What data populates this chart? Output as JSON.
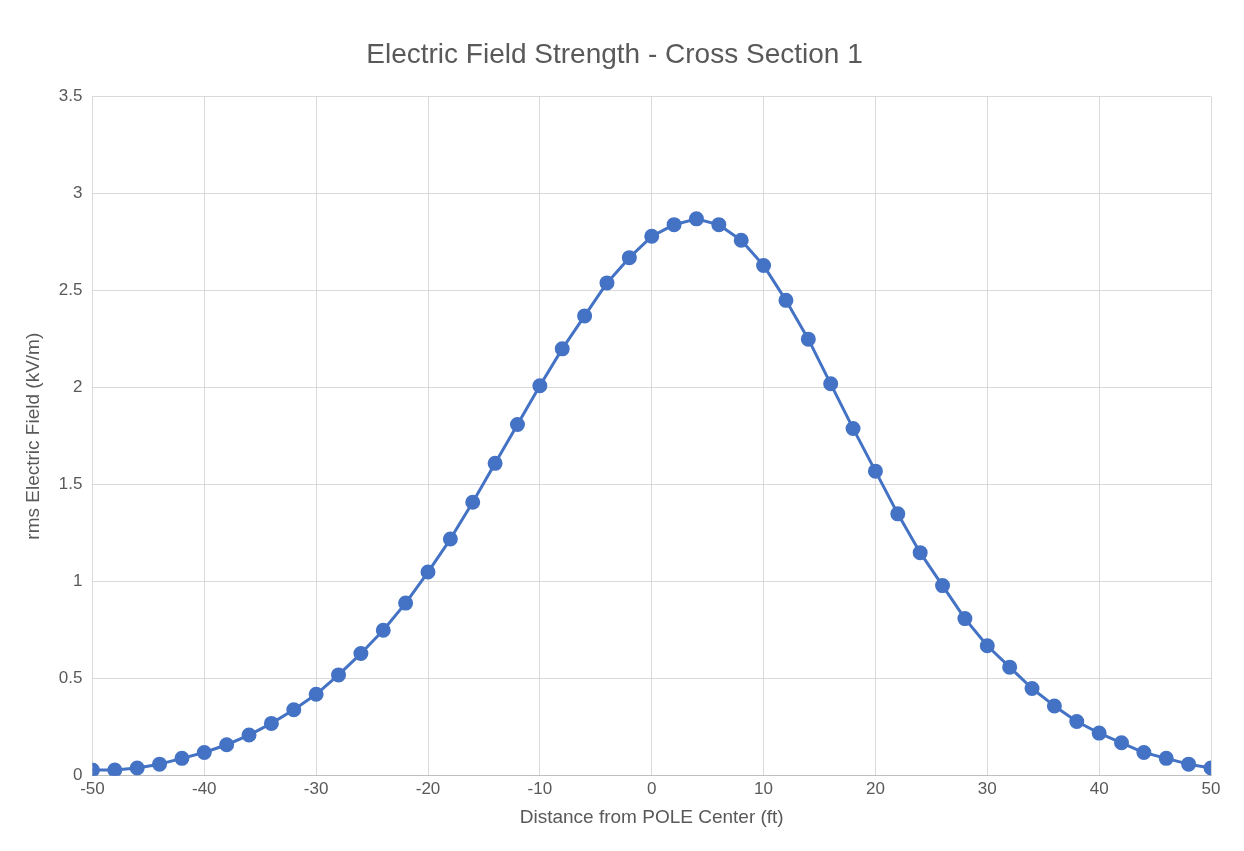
{
  "chart_data": {
    "type": "line",
    "title": "Electric Field Strength - Cross Section 1",
    "xlabel": "Distance from POLE Center (ft)",
    "ylabel": "rms Electric Field (kV/m)",
    "x": [
      -50,
      -48,
      -46,
      -44,
      -42,
      -40,
      -38,
      -36,
      -34,
      -32,
      -30,
      -28,
      -26,
      -24,
      -22,
      -20,
      -18,
      -16,
      -14,
      -12,
      -10,
      -8,
      -6,
      -4,
      -2,
      0,
      2,
      4,
      6,
      8,
      10,
      12,
      14,
      16,
      18,
      20,
      22,
      24,
      26,
      28,
      30,
      32,
      34,
      36,
      38,
      40,
      42,
      44,
      46,
      48,
      50
    ],
    "series": [
      {
        "color": "#4472c4",
        "values": [
          0.03,
          0.03,
          0.04,
          0.06,
          0.09,
          0.12,
          0.16,
          0.21,
          0.27,
          0.34,
          0.42,
          0.52,
          0.63,
          0.75,
          0.89,
          1.05,
          1.22,
          1.41,
          1.61,
          1.81,
          2.01,
          2.2,
          2.37,
          2.54,
          2.67,
          2.78,
          2.84,
          2.87,
          2.84,
          2.76,
          2.63,
          2.45,
          2.25,
          2.02,
          1.79,
          1.57,
          1.35,
          1.15,
          0.98,
          0.81,
          0.67,
          0.56,
          0.45,
          0.36,
          0.28,
          0.22,
          0.17,
          0.12,
          0.09,
          0.06,
          0.04
        ]
      }
    ],
    "xlim": [
      -50,
      50
    ],
    "xticks": [
      -50,
      -40,
      -30,
      -20,
      -10,
      0,
      10,
      20,
      30,
      40,
      50
    ],
    "ylim": [
      0,
      3.5
    ],
    "yticks": [
      0,
      0.5,
      1,
      1.5,
      2,
      2.5,
      3,
      3.5
    ],
    "grid": true,
    "legend": false,
    "marker": "circle",
    "line_style": "solid"
  }
}
